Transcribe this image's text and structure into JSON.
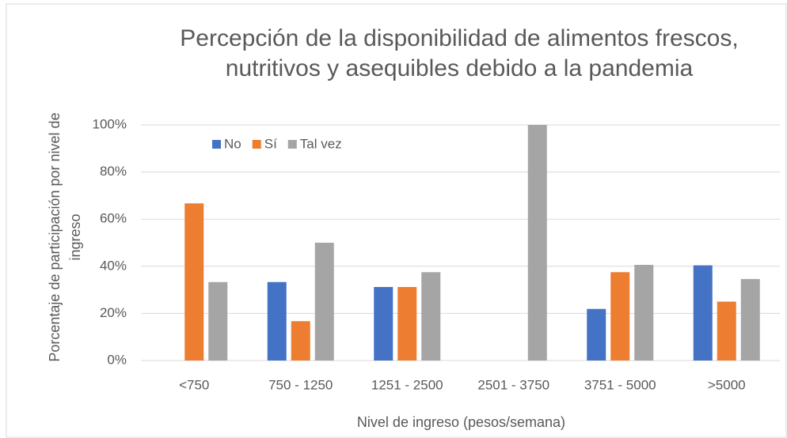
{
  "chart_data": {
    "type": "bar",
    "title": "Percepción de la disponibilidad de alimentos frescos, nutritivos y asequibles debido a la pandemia",
    "x_label": "Nivel de ingreso (pesos/semana)",
    "y_label": "Porcentaje de participación por nivel de ingreso",
    "categories": [
      "<750",
      "750 - 1250",
      "1251 - 2500",
      "2501 - 3750",
      "3751 - 5000",
      ">5000"
    ],
    "series": [
      {
        "name": "No",
        "color": "#4472c4",
        "values": [
          0,
          33.3,
          31.2,
          0,
          21.9,
          40.4
        ]
      },
      {
        "name": "Sí",
        "color": "#ed7d31",
        "values": [
          66.7,
          16.7,
          31.2,
          0,
          37.5,
          25
        ]
      },
      {
        "name": "Tal vez",
        "color": "#a5a5a5",
        "values": [
          33.3,
          50,
          37.5,
          100,
          40.6,
          34.6
        ]
      }
    ],
    "ylim": [
      0,
      100
    ],
    "yticks": [
      {
        "value": 0,
        "label": "0%"
      },
      {
        "value": 20,
        "label": "20%"
      },
      {
        "value": 40,
        "label": "40%"
      },
      {
        "value": 60,
        "label": "60%"
      },
      {
        "value": 80,
        "label": "80%"
      },
      {
        "value": 100,
        "label": "100%"
      }
    ],
    "grid": true,
    "legend": "top-left"
  }
}
